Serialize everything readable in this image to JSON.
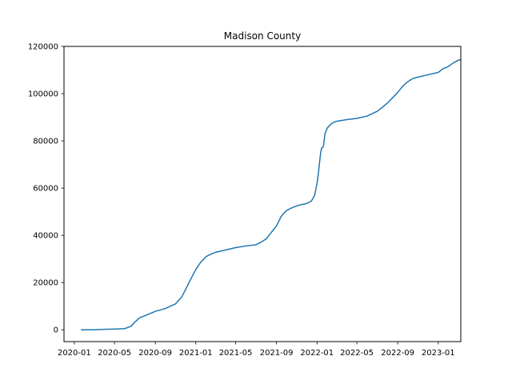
{
  "chart_data": {
    "type": "line",
    "title": "Madison County",
    "xlabel": "",
    "ylabel": "",
    "grid": false,
    "x_ticks": [
      "2020-01",
      "2020-05",
      "2020-09",
      "2021-01",
      "2021-05",
      "2021-09",
      "2022-01",
      "2022-05",
      "2022-09",
      "2023-01"
    ],
    "y_ticks": [
      "0",
      "20000",
      "40000",
      "60000",
      "80000",
      "100000",
      "120000"
    ],
    "xlim": [
      "2019-12-01",
      "2023-03-10"
    ],
    "ylim": [
      -5000,
      120000
    ],
    "series": [
      {
        "color": "#1f77b4",
        "points": [
          [
            "2020-01-21",
            0
          ],
          [
            "2020-03-01",
            0
          ],
          [
            "2020-04-01",
            200
          ],
          [
            "2020-05-01",
            300
          ],
          [
            "2020-06-01",
            500
          ],
          [
            "2020-06-20",
            1500
          ],
          [
            "2020-07-01",
            3200
          ],
          [
            "2020-07-15",
            5000
          ],
          [
            "2020-08-01",
            6000
          ],
          [
            "2020-09-01",
            7800
          ],
          [
            "2020-10-01",
            9000
          ],
          [
            "2020-11-01",
            11000
          ],
          [
            "2020-11-20",
            14000
          ],
          [
            "2020-12-01",
            17000
          ],
          [
            "2020-12-15",
            21000
          ],
          [
            "2021-01-01",
            25500
          ],
          [
            "2021-01-15",
            28500
          ],
          [
            "2021-02-01",
            31000
          ],
          [
            "2021-02-15",
            32000
          ],
          [
            "2021-03-01",
            32800
          ],
          [
            "2021-04-01",
            33800
          ],
          [
            "2021-05-01",
            34800
          ],
          [
            "2021-06-01",
            35500
          ],
          [
            "2021-07-01",
            36000
          ],
          [
            "2021-07-15",
            37000
          ],
          [
            "2021-08-01",
            38500
          ],
          [
            "2021-08-15",
            41000
          ],
          [
            "2021-09-01",
            44000
          ],
          [
            "2021-09-15",
            48000
          ],
          [
            "2021-10-01",
            50500
          ],
          [
            "2021-10-15",
            51500
          ],
          [
            "2021-11-01",
            52500
          ],
          [
            "2021-11-15",
            53000
          ],
          [
            "2021-12-01",
            53500
          ],
          [
            "2021-12-15",
            54500
          ],
          [
            "2021-12-25",
            57000
          ],
          [
            "2022-01-01",
            62000
          ],
          [
            "2022-01-05",
            66000
          ],
          [
            "2022-01-08",
            70000
          ],
          [
            "2022-01-12",
            75000
          ],
          [
            "2022-01-15",
            77000
          ],
          [
            "2022-01-20",
            77500
          ],
          [
            "2022-01-25",
            83000
          ],
          [
            "2022-02-01",
            85500
          ],
          [
            "2022-02-15",
            87500
          ],
          [
            "2022-03-01",
            88300
          ],
          [
            "2022-04-01",
            89000
          ],
          [
            "2022-05-01",
            89500
          ],
          [
            "2022-06-01",
            90500
          ],
          [
            "2022-07-01",
            92500
          ],
          [
            "2022-07-15",
            94000
          ],
          [
            "2022-08-01",
            96000
          ],
          [
            "2022-08-15",
            98000
          ],
          [
            "2022-09-01",
            100500
          ],
          [
            "2022-09-15",
            103000
          ],
          [
            "2022-10-01",
            105000
          ],
          [
            "2022-10-15",
            106300
          ],
          [
            "2022-11-01",
            107000
          ],
          [
            "2022-12-01",
            108000
          ],
          [
            "2023-01-01",
            109000
          ],
          [
            "2023-01-15",
            110500
          ],
          [
            "2023-02-01",
            111500
          ],
          [
            "2023-02-15",
            113000
          ],
          [
            "2023-03-01",
            114000
          ],
          [
            "2023-03-10",
            114500
          ]
        ]
      }
    ]
  }
}
